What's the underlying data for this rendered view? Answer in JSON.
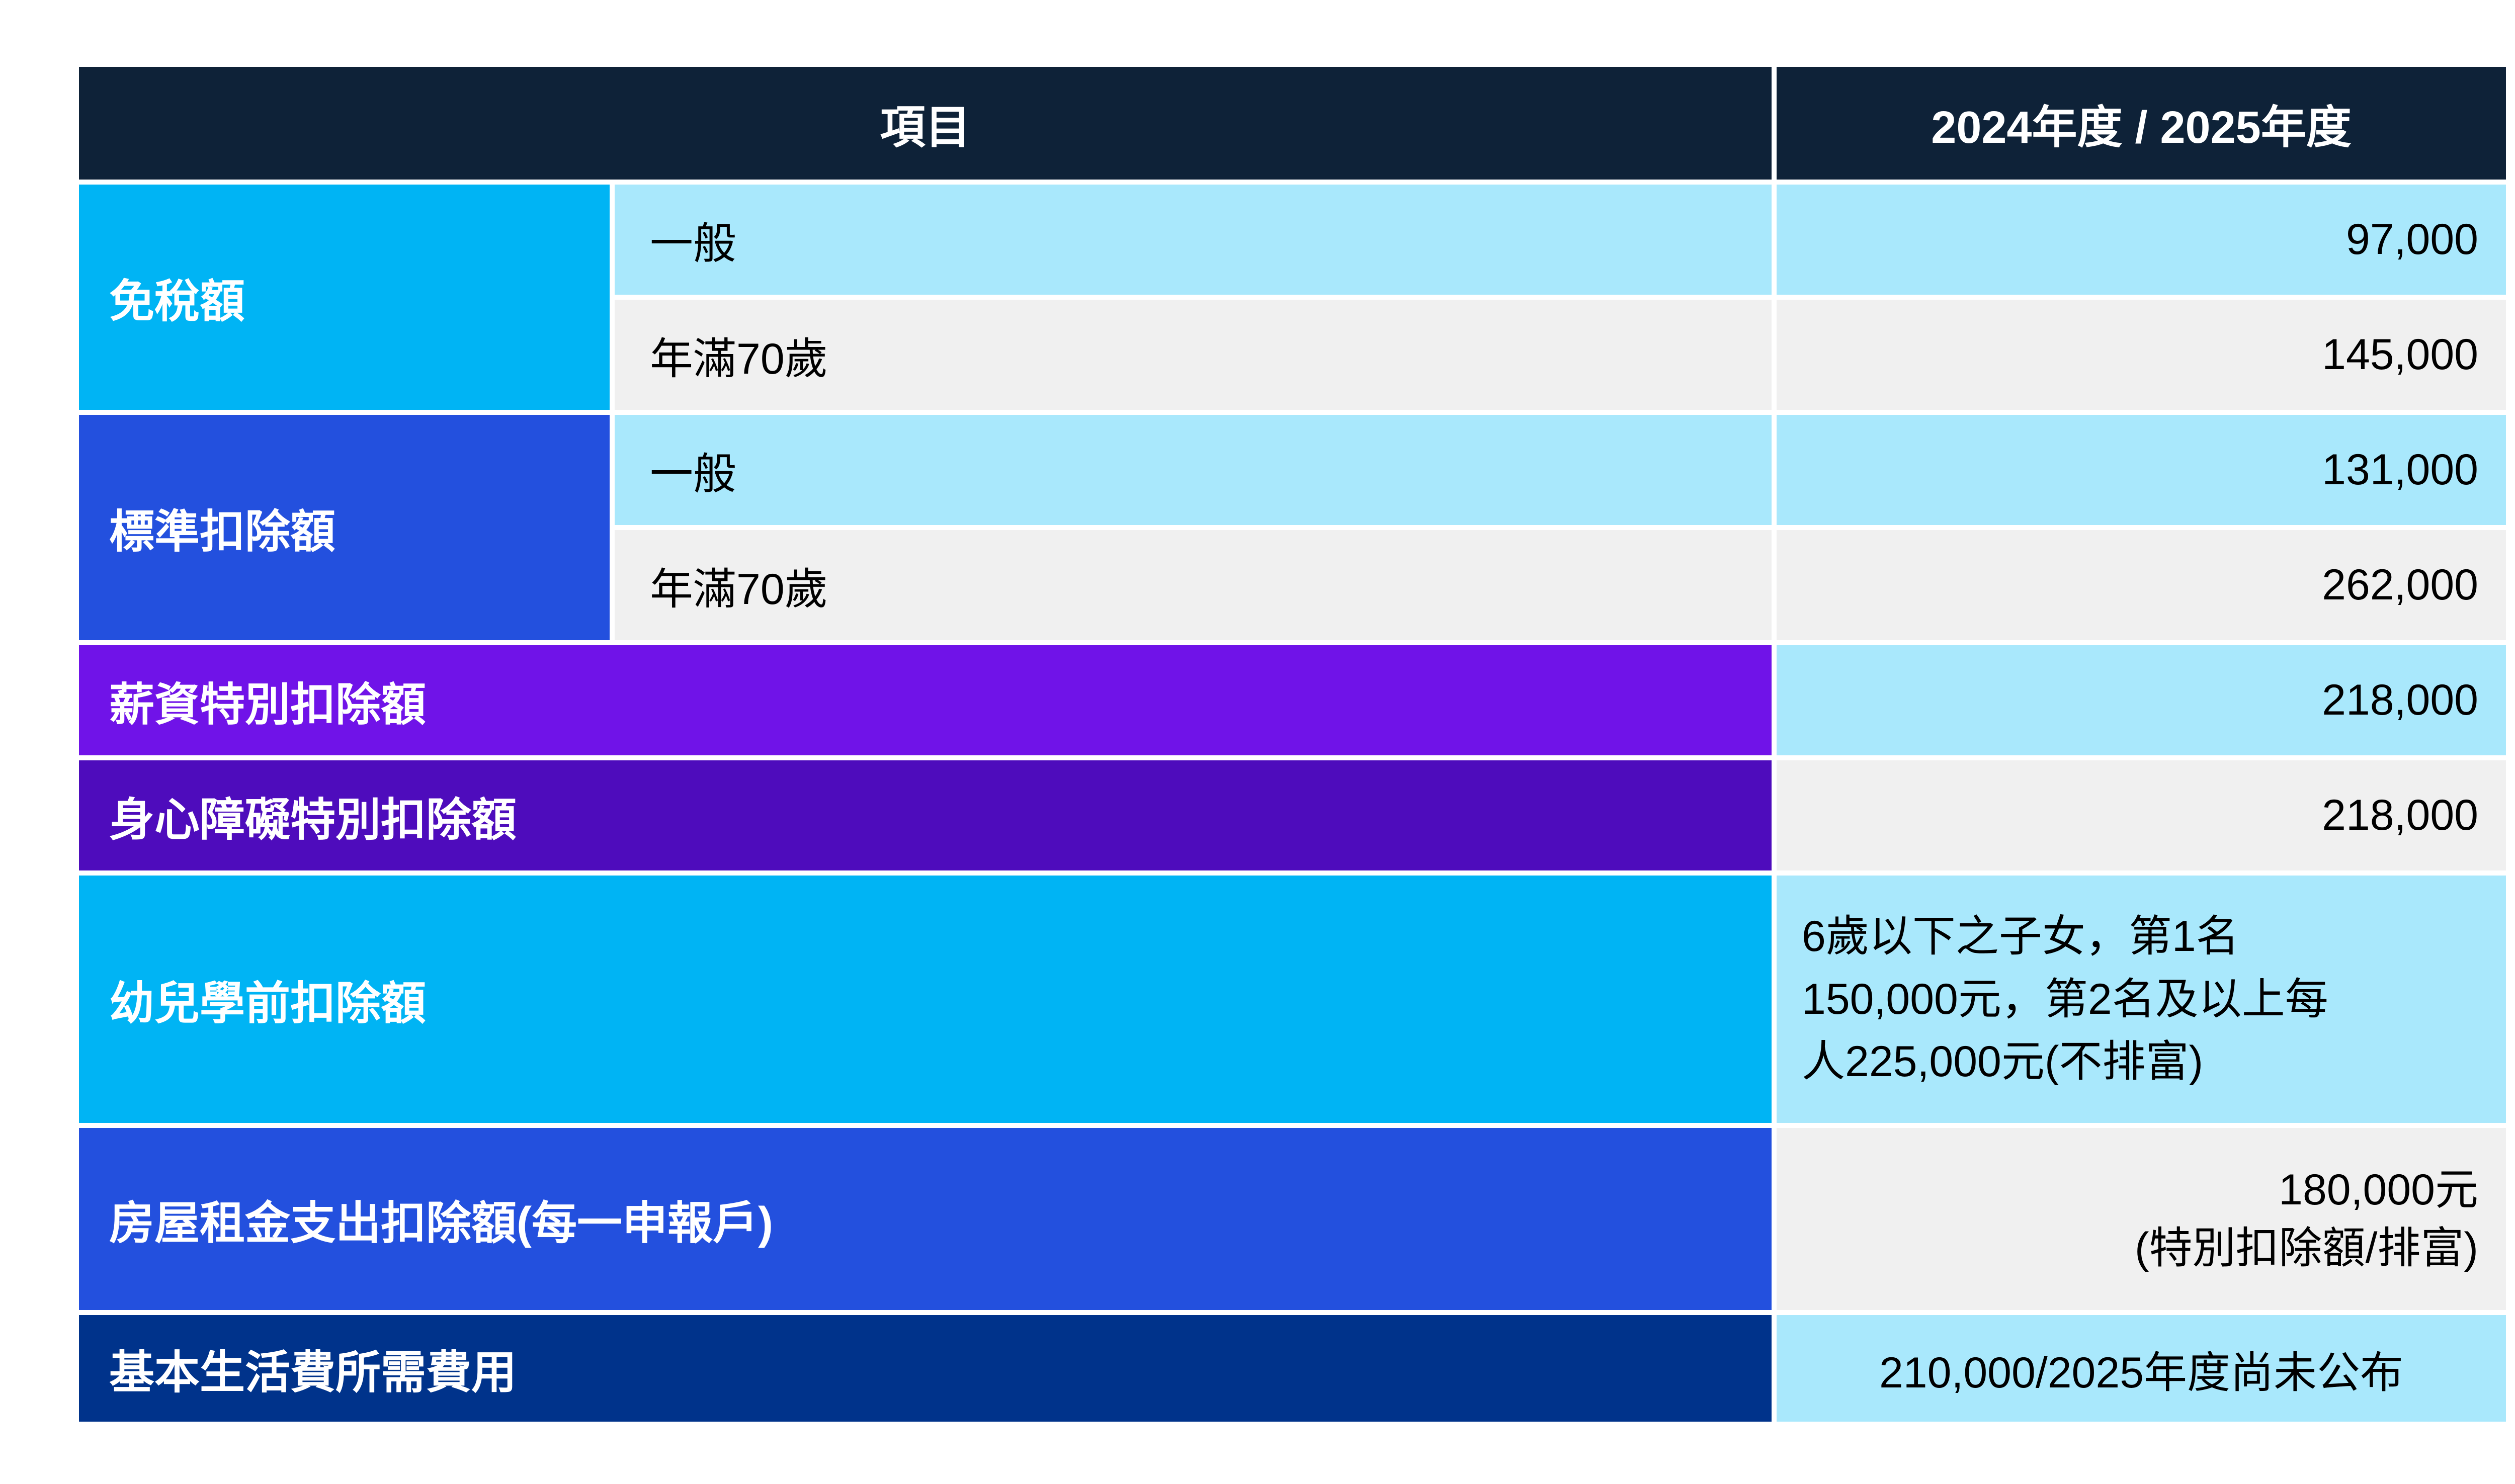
{
  "header": {
    "item": "項目",
    "year": "2024年度 / 2025年度"
  },
  "groups": [
    {
      "label": "免稅額",
      "rows": [
        {
          "sub": "一般",
          "value": "97,000"
        },
        {
          "sub": "年滿70歲",
          "value": "145,000"
        }
      ]
    },
    {
      "label": "標準扣除額",
      "rows": [
        {
          "sub": "一般",
          "value": "131,000"
        },
        {
          "sub": "年滿70歲",
          "value": "262,000"
        }
      ]
    }
  ],
  "rows": [
    {
      "label": "薪資特別扣除額",
      "value": "218,000"
    },
    {
      "label": "身心障礙特別扣除額",
      "value": "218,000"
    },
    {
      "label": "幼兒學前扣除額",
      "value": "6歲以下之子女，第1名\n150,000元，第2名及以上每\n人225,000元(不排富)"
    },
    {
      "label": "房屋租金支出扣除額(每一申報戶)",
      "value": "180,000元\n(特別扣除額/排富)"
    },
    {
      "label": "基本生活費所需費用",
      "value": "210,000/2025年度尚未公布"
    }
  ],
  "colors": {
    "header_bg": "#0e2238",
    "cyan": "#00b4f4",
    "royal_blue": "#2350de",
    "purple": "#7013e8",
    "dark_purple": "#4e0cbc",
    "navy": "#00338b",
    "light_blue": "#a9e8fc",
    "light_gray": "#f0f0f0"
  },
  "chart_data": {
    "type": "table",
    "title": "",
    "columns": [
      "項目",
      "",
      "2024年度 / 2025年度"
    ],
    "rows": [
      [
        "免稅額",
        "一般",
        "97,000"
      ],
      [
        "免稅額",
        "年滿70歲",
        "145,000"
      ],
      [
        "標準扣除額",
        "一般",
        "131,000"
      ],
      [
        "標準扣除額",
        "年滿70歲",
        "262,000"
      ],
      [
        "薪資特別扣除額",
        "",
        "218,000"
      ],
      [
        "身心障礙特別扣除額",
        "",
        "218,000"
      ],
      [
        "幼兒學前扣除額",
        "",
        "6歲以下之子女，第1名150,000元，第2名及以上每人225,000元(不排富)"
      ],
      [
        "房屋租金支出扣除額(每一申報戶)",
        "",
        "180,000元 (特別扣除額/排富)"
      ],
      [
        "基本生活費所需費用",
        "",
        "210,000/2025年度尚未公布"
      ]
    ]
  }
}
